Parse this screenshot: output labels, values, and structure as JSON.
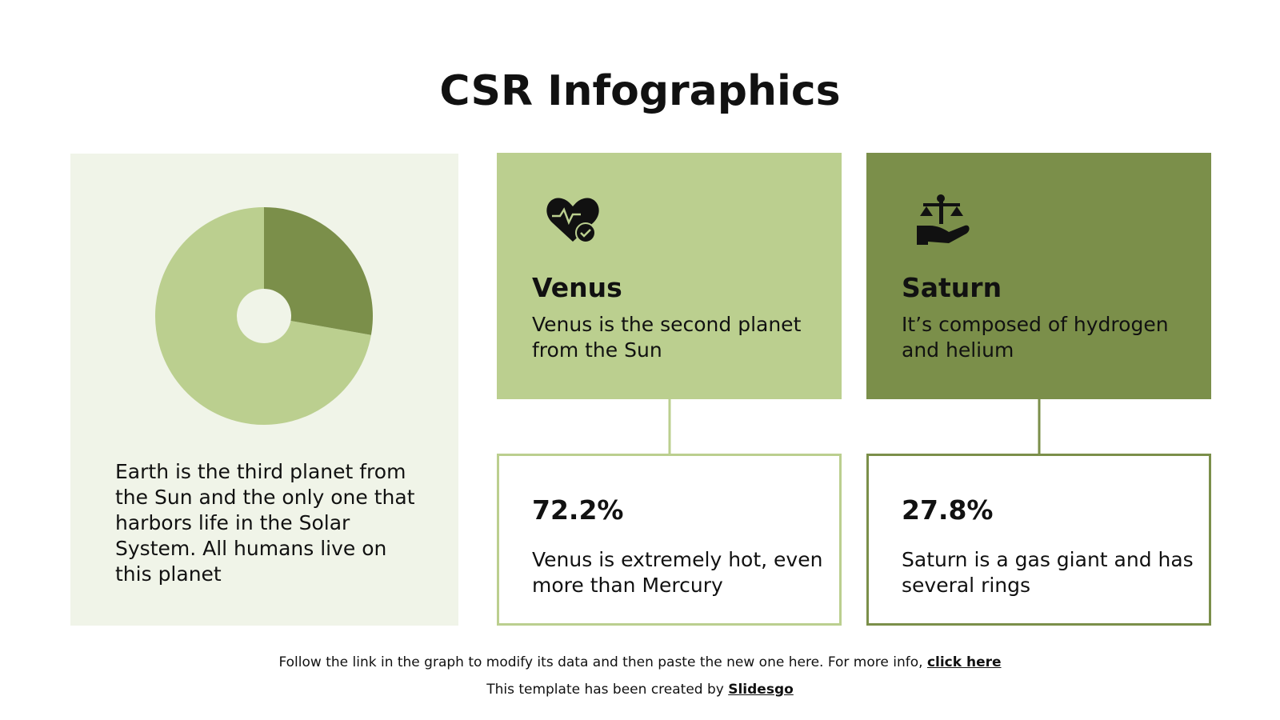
{
  "title": "CSR Infographics",
  "chart_data": {
    "type": "pie",
    "donut": true,
    "categories": [
      "Venus",
      "Saturn"
    ],
    "values": [
      72.2,
      27.8
    ],
    "value_labels": [
      "72.2%",
      "27.8%"
    ],
    "colors": [
      "#bbcf8f",
      "#7b8f4a"
    ]
  },
  "earth_text": "Earth is the third planet from the Sun and the only one that harbors life in the Solar System. All humans live on this planet",
  "cards": [
    {
      "description": "Venus is the second planet from the Sun",
      "detail": "Venus is extremely hot, even more than Mercury"
    },
    {
      "description": "It’s composed of hydrogen and helium",
      "detail": "Saturn is a gas giant and has several rings"
    }
  ],
  "footer": {
    "text": "Follow the link in the graph to modify its data and then paste the new one here. For more info, ",
    "link": "click here",
    "credit": "This template has been created by ",
    "credit_link": "Slidesgo"
  }
}
